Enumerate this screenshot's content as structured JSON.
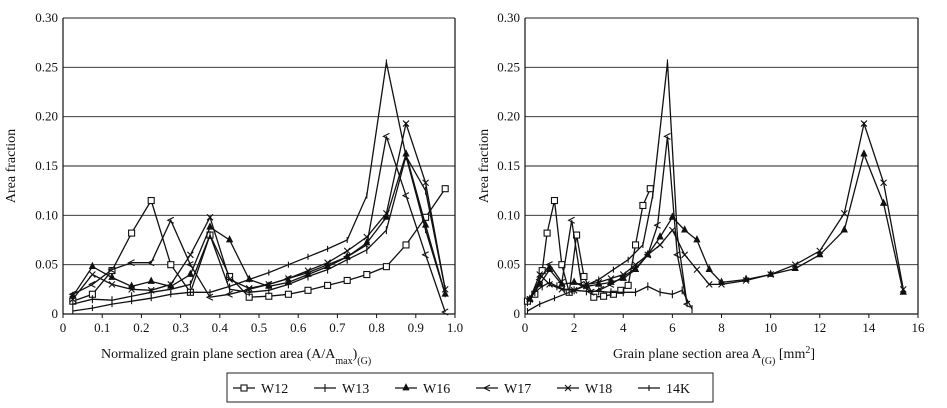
{
  "legend": [
    {
      "label": "W12",
      "marker": "square"
    },
    {
      "label": "W13",
      "marker": "plus"
    },
    {
      "label": "W16",
      "marker": "triangle"
    },
    {
      "label": "W17",
      "marker": "arrow"
    },
    {
      "label": "W18",
      "marker": "x"
    },
    {
      "label": "14K",
      "marker": "dash"
    }
  ],
  "chart_data": [
    {
      "type": "line",
      "xlabel": "Normalized grain plane section area (A/A",
      "xlabel_sub1": "max",
      "xlabel_mid": ")",
      "xlabel_sub2": "(G)",
      "ylabel": "Area fraction",
      "xlim": [
        0,
        1.0
      ],
      "ylim": [
        0,
        0.3
      ],
      "xticks": [
        "0",
        "0.1",
        "0.2",
        "0.3",
        "0.4",
        "0.5",
        "0.6",
        "0.7",
        "0.8",
        "0.9",
        "1.0"
      ],
      "yticks": [
        "0",
        "0.05",
        "0.10",
        "0.15",
        "0.20",
        "0.25",
        "0.30"
      ],
      "grid": "horizontal",
      "series": [
        {
          "name": "W12",
          "x": [
            0.025,
            0.075,
            0.125,
            0.175,
            0.225,
            0.275,
            0.325,
            0.375,
            0.425,
            0.475,
            0.525,
            0.575,
            0.625,
            0.675,
            0.725,
            0.775,
            0.825,
            0.875,
            0.925,
            0.975
          ],
          "y": [
            0.013,
            0.02,
            0.044,
            0.082,
            0.115,
            0.05,
            0.022,
            0.08,
            0.038,
            0.017,
            0.018,
            0.02,
            0.024,
            0.029,
            0.034,
            0.04,
            0.048,
            0.07,
            0.098,
            0.127
          ]
        },
        {
          "name": "W13",
          "x": [
            0.025,
            0.075,
            0.125,
            0.175,
            0.225,
            0.275,
            0.325,
            0.375,
            0.425,
            0.475,
            0.525,
            0.575,
            0.625,
            0.675,
            0.725,
            0.775,
            0.825,
            0.875,
            0.925,
            0.975
          ],
          "y": [
            0.01,
            0.015,
            0.014,
            0.018,
            0.022,
            0.025,
            0.03,
            0.08,
            0.025,
            0.022,
            0.024,
            0.03,
            0.038,
            0.045,
            0.055,
            0.065,
            0.085,
            0.16,
            0.125,
            0.025
          ]
        },
        {
          "name": "W16",
          "x": [
            0.025,
            0.075,
            0.125,
            0.175,
            0.225,
            0.275,
            0.325,
            0.375,
            0.425,
            0.475,
            0.525,
            0.575,
            0.625,
            0.675,
            0.725,
            0.775,
            0.825,
            0.875,
            0.925,
            0.975
          ],
          "y": [
            0.018,
            0.048,
            0.037,
            0.028,
            0.033,
            0.028,
            0.04,
            0.088,
            0.075,
            0.035,
            0.028,
            0.032,
            0.04,
            0.048,
            0.058,
            0.072,
            0.098,
            0.162,
            0.09,
            0.02
          ]
        },
        {
          "name": "W17",
          "x": [
            0.025,
            0.075,
            0.125,
            0.175,
            0.225,
            0.275,
            0.325,
            0.375,
            0.425,
            0.475,
            0.525,
            0.575,
            0.625,
            0.675,
            0.725,
            0.775,
            0.825,
            0.875,
            0.925,
            0.975
          ],
          "y": [
            0.02,
            0.03,
            0.045,
            0.052,
            0.052,
            0.095,
            0.05,
            0.017,
            0.02,
            0.025,
            0.03,
            0.036,
            0.042,
            0.05,
            0.058,
            0.07,
            0.18,
            0.12,
            0.06,
            0.002
          ]
        },
        {
          "name": "W18",
          "x": [
            0.025,
            0.075,
            0.125,
            0.175,
            0.225,
            0.275,
            0.325,
            0.375,
            0.425,
            0.475,
            0.525,
            0.575,
            0.625,
            0.675,
            0.725,
            0.775,
            0.825,
            0.875,
            0.925,
            0.975
          ],
          "y": [
            0.015,
            0.04,
            0.03,
            0.025,
            0.024,
            0.03,
            0.06,
            0.098,
            0.035,
            0.026,
            0.03,
            0.036,
            0.044,
            0.052,
            0.064,
            0.078,
            0.102,
            0.193,
            0.133,
            0.025
          ]
        },
        {
          "name": "14K",
          "x": [
            0.025,
            0.075,
            0.125,
            0.175,
            0.225,
            0.275,
            0.325,
            0.375,
            0.425,
            0.475,
            0.525,
            0.575,
            0.625,
            0.675,
            0.725,
            0.775,
            0.825,
            0.875,
            0.925,
            0.975
          ],
          "y": [
            0.003,
            0.006,
            0.01,
            0.013,
            0.016,
            0.02,
            0.022,
            0.022,
            0.028,
            0.035,
            0.042,
            0.05,
            0.058,
            0.066,
            0.075,
            0.12,
            0.255,
            0.16,
            0.085,
            0.02
          ]
        }
      ]
    },
    {
      "type": "line",
      "xlabel": "Grain plane section area A",
      "xlabel_sub": "(G)",
      "xlabel_unit": "[mm",
      "xlabel_sup": "2",
      "xlabel_close": "]",
      "ylabel": "Area fraction",
      "xlim": [
        0,
        16
      ],
      "ylim": [
        0,
        0.3
      ],
      "xticks": [
        "0",
        "2",
        "4",
        "6",
        "8",
        "10",
        "12",
        "14",
        "16"
      ],
      "yticks": [
        "0",
        "0.05",
        "0.10",
        "0.15",
        "0.20",
        "0.25",
        "0.30"
      ],
      "grid": "horizontal",
      "series": [
        {
          "name": "W12",
          "x": [
            0.1,
            0.4,
            0.7,
            0.9,
            1.2,
            1.5,
            1.8,
            2.1,
            2.4,
            2.8,
            3.2,
            3.6,
            3.9,
            4.2,
            4.5,
            4.8,
            5.1
          ],
          "y": [
            0.013,
            0.02,
            0.044,
            0.082,
            0.115,
            0.05,
            0.022,
            0.08,
            0.038,
            0.017,
            0.018,
            0.02,
            0.024,
            0.029,
            0.07,
            0.11,
            0.127
          ]
        },
        {
          "name": "W13",
          "x": [
            0.1,
            0.4,
            0.7,
            1.0,
            1.3,
            1.6,
            2.0,
            2.5,
            3.0,
            3.5,
            4.0,
            4.5,
            5.0,
            5.5,
            6.0,
            6.4,
            6.8
          ],
          "y": [
            0.012,
            0.022,
            0.028,
            0.032,
            0.028,
            0.025,
            0.024,
            0.023,
            0.023,
            0.022,
            0.022,
            0.022,
            0.028,
            0.022,
            0.02,
            0.024,
            0.005
          ]
        },
        {
          "name": "W16",
          "x": [
            0.2,
            0.6,
            1.0,
            1.5,
            2.0,
            2.5,
            3.0,
            3.5,
            4.0,
            4.5,
            5.0,
            5.5,
            6.0,
            6.5,
            7.0,
            7.5,
            8.0,
            9.0,
            10.0,
            11.0,
            12.0,
            13.0,
            13.8,
            14.6,
            15.4
          ],
          "y": [
            0.015,
            0.03,
            0.045,
            0.03,
            0.032,
            0.028,
            0.03,
            0.032,
            0.036,
            0.045,
            0.06,
            0.078,
            0.098,
            0.085,
            0.075,
            0.045,
            0.032,
            0.035,
            0.04,
            0.046,
            0.06,
            0.085,
            0.162,
            0.112,
            0.022
          ]
        },
        {
          "name": "W17",
          "x": [
            0.2,
            0.6,
            1.0,
            1.5,
            1.9,
            2.3,
            2.7,
            3.1,
            3.5,
            4.0,
            4.5,
            5.0,
            5.4,
            5.8,
            6.2,
            6.6
          ],
          "y": [
            0.015,
            0.035,
            0.05,
            0.032,
            0.095,
            0.03,
            0.022,
            0.025,
            0.03,
            0.038,
            0.046,
            0.06,
            0.09,
            0.18,
            0.06,
            0.01
          ]
        },
        {
          "name": "W18",
          "x": [
            0.2,
            0.6,
            1.0,
            1.5,
            2.0,
            2.5,
            3.0,
            3.5,
            4.0,
            4.5,
            5.0,
            5.5,
            6.0,
            6.5,
            7.0,
            7.5,
            8.0,
            9.0,
            10.0,
            11.0,
            12.0,
            13.0,
            13.8,
            14.6,
            15.4
          ],
          "y": [
            0.015,
            0.04,
            0.03,
            0.025,
            0.024,
            0.03,
            0.032,
            0.036,
            0.04,
            0.05,
            0.06,
            0.07,
            0.085,
            0.06,
            0.045,
            0.03,
            0.03,
            0.034,
            0.04,
            0.05,
            0.064,
            0.102,
            0.193,
            0.133,
            0.025
          ]
        },
        {
          "name": "14K",
          "x": [
            0.1,
            0.6,
            1.2,
            1.8,
            2.4,
            3.0,
            3.6,
            4.2,
            4.8,
            5.2,
            5.8,
            6.2,
            6.6
          ],
          "y": [
            0.003,
            0.01,
            0.016,
            0.022,
            0.028,
            0.035,
            0.045,
            0.055,
            0.07,
            0.12,
            0.255,
            0.08,
            0.01
          ]
        }
      ]
    }
  ]
}
